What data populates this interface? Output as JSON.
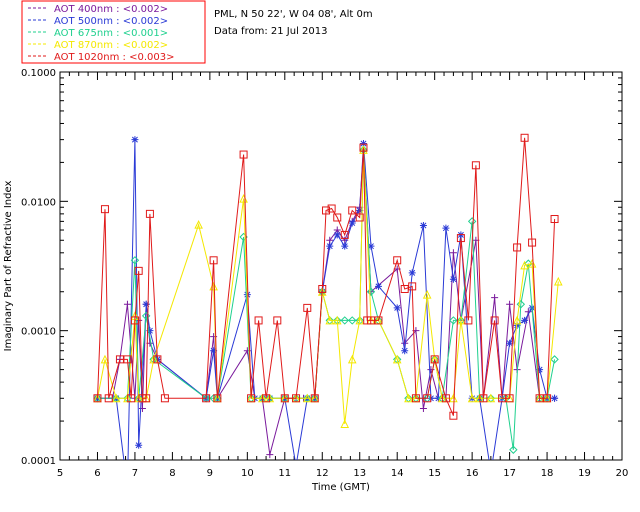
{
  "chart_data": {
    "type": "line",
    "info_line_1": "PML, N 50 22', W 04 08', Alt 0m",
    "info_line_2": "Data from: 21 Jul 2013",
    "xlabel": "Time (GMT)",
    "ylabel": "Imaginary Part of Refractive Index",
    "xlim": [
      5,
      20
    ],
    "ylim": [
      0.0001,
      0.1
    ],
    "yscale": "log",
    "x_ticks": [
      "5",
      "6",
      "7",
      "8",
      "9",
      "10",
      "11",
      "12",
      "13",
      "14",
      "15",
      "16",
      "17",
      "18",
      "19",
      "20"
    ],
    "y_ticks": [
      "0.0001",
      "0.0010",
      "0.0100",
      "0.1000"
    ],
    "series": [
      {
        "name": "AOT  400nm : <0.002>",
        "color": "#7a1a9c",
        "marker": "plus",
        "x": [
          6.0,
          6.4,
          6.6,
          6.8,
          7.0,
          7.1,
          7.2,
          7.3,
          7.4,
          7.6,
          8.9,
          9.1,
          9.2,
          10.0,
          10.2,
          10.4,
          10.6,
          11.0,
          11.3,
          11.5,
          11.8,
          12.0,
          12.2,
          12.4,
          12.6,
          12.8,
          13.0,
          13.1,
          13.3,
          14.0,
          14.2,
          14.5,
          14.7,
          14.9,
          15.1,
          15.3,
          15.5,
          15.7,
          16.1,
          16.3,
          16.6,
          16.8,
          17.0,
          17.2,
          17.5,
          17.8,
          18.0,
          18.2
        ],
        "y": [
          0.0003,
          0.0003,
          0.0006,
          0.0016,
          0.0003,
          0.0012,
          0.00025,
          0.0016,
          0.0008,
          0.0006,
          0.0003,
          0.0009,
          0.0003,
          0.0007,
          0.0003,
          0.0003,
          0.00011,
          0.0003,
          0.0003,
          0.0003,
          0.0003,
          0.002,
          0.005,
          0.006,
          0.005,
          0.007,
          0.009,
          0.025,
          0.002,
          0.003,
          0.0008,
          0.001,
          0.00025,
          0.0005,
          0.0003,
          0.0003,
          0.004,
          0.0012,
          0.005,
          0.0003,
          0.0018,
          0.0003,
          0.0016,
          0.0005,
          0.0014,
          0.0003,
          0.0003,
          0.0003
        ]
      },
      {
        "name": "AOT  500nm : <0.002>",
        "color": "#2a3ad6",
        "marker": "star",
        "x": [
          6.0,
          6.5,
          6.8,
          7.0,
          7.1,
          7.3,
          7.4,
          7.6,
          8.9,
          9.1,
          9.2,
          10.0,
          10.2,
          10.4,
          10.6,
          11.0,
          11.3,
          11.6,
          11.8,
          12.0,
          12.2,
          12.4,
          12.6,
          12.8,
          13.0,
          13.1,
          13.3,
          13.5,
          14.0,
          14.2,
          14.4,
          14.7,
          14.9,
          15.1,
          15.3,
          15.5,
          15.7,
          16.0,
          16.2,
          16.5,
          16.8,
          17.0,
          17.2,
          17.4,
          17.6,
          17.8,
          18.0,
          18.2
        ],
        "y": [
          0.0003,
          0.0003,
          6e-05,
          0.03,
          0.00013,
          0.0016,
          0.001,
          0.0006,
          0.0003,
          0.0007,
          0.0003,
          0.0019,
          0.0003,
          0.0003,
          0.0003,
          0.0003,
          9e-05,
          0.0003,
          0.0003,
          0.002,
          0.0045,
          0.0055,
          0.0045,
          0.0068,
          0.0085,
          0.028,
          0.0045,
          0.0022,
          0.0015,
          0.0007,
          0.0028,
          0.0065,
          0.0003,
          0.0003,
          0.0062,
          0.0025,
          0.0055,
          0.0003,
          0.0003,
          8e-05,
          0.0003,
          0.0008,
          0.0011,
          0.0012,
          0.0015,
          0.0005,
          0.0003,
          0.0003
        ]
      },
      {
        "name": "AOT  675nm : <0.001>",
        "color": "#1fd08e",
        "marker": "diamond",
        "x": [
          6.0,
          6.5,
          6.8,
          7.0,
          7.1,
          7.3,
          7.5,
          8.9,
          9.1,
          9.2,
          9.9,
          10.1,
          10.4,
          10.6,
          11.0,
          11.3,
          11.6,
          11.8,
          12.0,
          12.2,
          12.4,
          12.6,
          12.8,
          13.0,
          13.1,
          13.3,
          13.5,
          14.0,
          14.3,
          14.5,
          14.8,
          15.0,
          15.2,
          15.5,
          15.7,
          16.0,
          16.2,
          16.5,
          16.9,
          17.1,
          17.3,
          17.5,
          17.8,
          18.0,
          18.2
        ],
        "y": [
          0.0003,
          0.0003,
          0.0003,
          0.0035,
          0.0003,
          0.0013,
          0.0006,
          0.0003,
          0.0003,
          0.0003,
          0.0053,
          0.0003,
          0.0003,
          0.0003,
          0.0003,
          0.0003,
          0.0003,
          0.0003,
          0.002,
          0.0012,
          0.0012,
          0.0012,
          0.0012,
          0.0012,
          0.025,
          0.002,
          0.0012,
          0.0006,
          0.0003,
          0.0003,
          0.0003,
          0.0006,
          0.0003,
          0.0012,
          0.0012,
          0.007,
          0.0003,
          0.0003,
          0.0003,
          0.00012,
          0.0016,
          0.0033,
          0.0003,
          0.0003,
          0.0006
        ]
      },
      {
        "name": "AOT  870nm : <0.002>",
        "color": "#f4e800",
        "marker": "triangle",
        "x": [
          6.0,
          6.2,
          6.5,
          6.8,
          7.0,
          7.1,
          7.3,
          7.5,
          8.7,
          9.1,
          9.2,
          9.9,
          10.1,
          10.4,
          10.6,
          11.0,
          11.3,
          11.6,
          11.8,
          12.0,
          12.2,
          12.4,
          12.6,
          12.8,
          13.0,
          13.1,
          13.3,
          13.5,
          14.0,
          14.3,
          14.5,
          14.8,
          15.0,
          15.2,
          15.5,
          15.7,
          16.0,
          16.2,
          16.5,
          17.0,
          17.2,
          17.4,
          17.6,
          17.8,
          18.0,
          18.3
        ],
        "y": [
          0.0003,
          0.0006,
          0.0003,
          0.0003,
          0.0013,
          0.0003,
          0.0003,
          0.0006,
          0.0066,
          0.0022,
          0.0003,
          0.0105,
          0.0003,
          0.0003,
          0.0003,
          0.0003,
          0.0003,
          0.0003,
          0.0003,
          0.002,
          0.0012,
          0.0012,
          0.00019,
          0.0006,
          0.0012,
          0.025,
          0.0012,
          0.0012,
          0.0006,
          0.0003,
          0.0003,
          0.0019,
          0.0006,
          0.0003,
          0.0003,
          0.0012,
          0.0003,
          0.0003,
          0.0003,
          0.0003,
          0.0012,
          0.0032,
          0.0033,
          0.0003,
          0.0003,
          0.0024
        ]
      },
      {
        "name": "AOT 1020nm : <0.003>",
        "color": "#e01a1a",
        "marker": "square",
        "x": [
          6.0,
          6.2,
          6.3,
          6.6,
          6.8,
          6.9,
          7.0,
          7.1,
          7.2,
          7.3,
          7.4,
          7.6,
          7.8,
          8.9,
          9.1,
          9.2,
          9.9,
          10.1,
          10.3,
          10.5,
          10.8,
          11.0,
          11.3,
          11.6,
          11.8,
          12.0,
          12.1,
          12.25,
          12.4,
          12.6,
          12.8,
          13.0,
          13.1,
          13.2,
          13.3,
          13.5,
          14.0,
          14.2,
          14.4,
          14.5,
          14.8,
          15.0,
          15.3,
          15.5,
          15.7,
          15.9,
          16.1,
          16.3,
          16.6,
          16.8,
          17.0,
          17.2,
          17.4,
          17.6,
          17.8,
          18.0,
          18.2
        ],
        "y": [
          0.0003,
          0.0087,
          0.0003,
          0.0006,
          0.0006,
          0.0003,
          0.0012,
          0.0029,
          0.0003,
          0.0003,
          0.008,
          0.0006,
          0.0003,
          0.0003,
          0.0035,
          0.0003,
          0.023,
          0.0003,
          0.0012,
          0.0003,
          0.0012,
          0.0003,
          0.0003,
          0.0015,
          0.0003,
          0.0021,
          0.0085,
          0.0088,
          0.0075,
          0.0055,
          0.0085,
          0.0075,
          0.026,
          0.0012,
          0.0012,
          0.0012,
          0.0035,
          0.0021,
          0.0022,
          0.0003,
          0.0003,
          0.0006,
          0.0003,
          0.00022,
          0.0052,
          0.0012,
          0.019,
          0.0003,
          0.0012,
          0.0003,
          0.0003,
          0.0044,
          0.031,
          0.0048,
          0.0003,
          0.0003,
          0.0073
        ]
      }
    ]
  }
}
